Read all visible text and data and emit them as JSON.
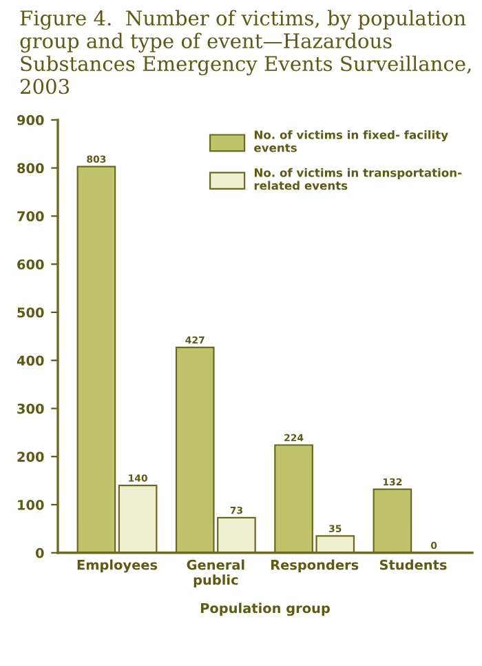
{
  "chart_data": {
    "type": "bar",
    "title": "Figure 4.  Number of victims, by population group and type of event—Hazardous Substances Emergency Events Surveillance, 2003",
    "xlabel": "Population group",
    "categories": [
      "Employees",
      "General\npublic",
      "Responders",
      "Students"
    ],
    "series": [
      {
        "name": "No. of victims in fixed- facility\nevents",
        "color": "#bfc46a",
        "values": [
          803,
          427,
          224,
          132
        ]
      },
      {
        "name": "No. of victims in transportation-\nrelated events",
        "color": "#efefd2",
        "values": [
          140,
          73,
          35,
          0
        ]
      }
    ],
    "ylim": [
      0,
      900
    ],
    "yticks": [
      0,
      100,
      200,
      300,
      400,
      500,
      600,
      700,
      800,
      900
    ],
    "data_labels": true,
    "legend": "top right",
    "grid": false
  }
}
